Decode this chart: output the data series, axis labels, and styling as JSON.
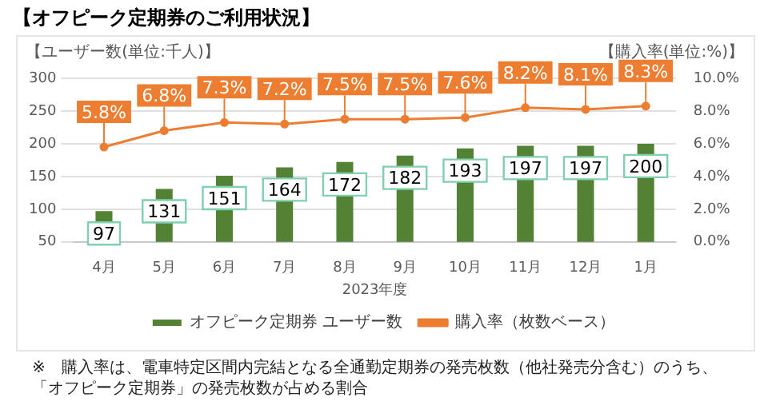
{
  "chart_data": {
    "type": "bar",
    "title": "【オフピーク定期券のご利用状況】",
    "xlabel": "2023年度",
    "ylabel": "【ユーザー数(単位:千人)】",
    "y2label": "【購入率(単位:%)】",
    "categories": [
      "4月",
      "5月",
      "6月",
      "7月",
      "8月",
      "9月",
      "10月",
      "11月",
      "12月",
      "1月"
    ],
    "series": [
      {
        "name": "オフピーク定期券 ユーザー数",
        "color": "#548235",
        "values": [
          97,
          131,
          151,
          164,
          172,
          182,
          193,
          197,
          197,
          200
        ],
        "value_labels": [
          "97",
          "131",
          "151",
          "164",
          "172",
          "182",
          "193",
          "197",
          "197",
          "200"
        ]
      },
      {
        "name": "購入率（枚数ベース）",
        "type": "line",
        "axis": "y2",
        "color": "#ed7d31",
        "values": [
          5.8,
          6.8,
          7.3,
          7.2,
          7.5,
          7.5,
          7.6,
          8.2,
          8.1,
          8.3
        ],
        "value_labels": [
          "5.8%",
          "6.8%",
          "7.3%",
          "7.2%",
          "7.5%",
          "7.5%",
          "7.6%",
          "8.2%",
          "8.1%",
          "8.3%"
        ]
      }
    ],
    "ylim": [
      50,
      300
    ],
    "yticks": [
      50,
      100,
      150,
      200,
      250,
      300
    ],
    "y2lim": [
      0,
      10
    ],
    "y2ticks": [
      {
        "value": 0,
        "label": "0.0%"
      },
      {
        "value": 2,
        "label": "2.0%"
      },
      {
        "value": 4,
        "label": "4.0%"
      },
      {
        "value": 6,
        "label": "6.0%"
      },
      {
        "value": 8,
        "label": "8.0%"
      },
      {
        "value": 10,
        "label": "10.0%"
      }
    ],
    "grid": "y",
    "legend": "bottom",
    "marker": "circle",
    "line_style": "solid",
    "annotations": [
      "※　購入率は、電車特定区間内完結となる全通勤定期券の発売枚数（他社発売分含む）のうち、「オフピーク定期券」の発売枚数が占める割合"
    ]
  }
}
